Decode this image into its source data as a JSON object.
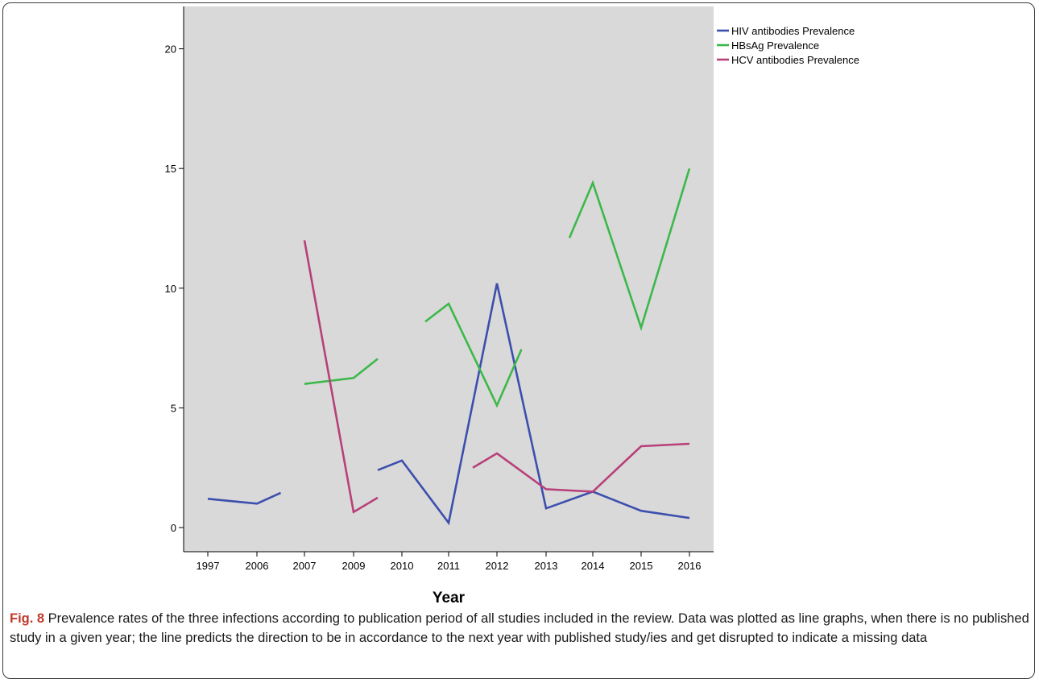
{
  "chart_data": {
    "type": "line",
    "title": "",
    "xlabel": "Year",
    "ylabel": "",
    "categories": [
      "1997",
      "2006",
      "2007",
      "2009",
      "2010",
      "2011",
      "2012",
      "2013",
      "2014",
      "2015",
      "2016"
    ],
    "ylim": [
      -1,
      21
    ],
    "yticks": [
      0,
      5,
      10,
      15,
      20
    ],
    "grid": false,
    "legend_position": "top-right-outside",
    "plot_background": "#d9d9d9",
    "series": [
      {
        "name": "HIV antibodies Prevalence",
        "color": "#3c4fad",
        "segments": [
          [
            [
              1997,
              1.2
            ],
            [
              2006,
              1.0
            ],
            [
              2007,
              1.45
            ]
          ],
          [
            [
              2009,
              2.4
            ],
            [
              2010,
              2.8
            ],
            [
              2011,
              0.2
            ],
            [
              2012,
              10.2
            ],
            [
              2013,
              0.8
            ],
            [
              2014,
              1.5
            ],
            [
              2015,
              0.7
            ],
            [
              2016,
              0.4
            ]
          ]
        ]
      },
      {
        "name": "HBsAg Prevalence",
        "color": "#3cb84a",
        "segments": [
          [
            [
              2007,
              6.0
            ],
            [
              2009,
              6.25
            ],
            [
              2010,
              7.05
            ]
          ],
          [
            [
              2010,
              8.6
            ],
            [
              2011,
              9.35
            ],
            [
              2012,
              5.1
            ],
            [
              2013,
              7.45
            ]
          ],
          [
            [
              2013,
              12.1
            ],
            [
              2014,
              14.4
            ],
            [
              2015,
              8.35
            ],
            [
              2016,
              15.0
            ]
          ]
        ]
      },
      {
        "name": "HCV antibodies Prevalence",
        "color": "#b8407a",
        "segments": [
          [
            [
              2007,
              12.0
            ],
            [
              2009,
              0.65
            ],
            [
              2010,
              1.25
            ]
          ],
          [
            [
              2011,
              2.5
            ],
            [
              2012,
              3.1
            ],
            [
              2013,
              1.6
            ],
            [
              2014,
              1.5
            ],
            [
              2015,
              3.4
            ],
            [
              2016,
              3.5
            ]
          ]
        ]
      }
    ]
  },
  "caption": {
    "label": "Fig. 8",
    "text": " Prevalence rates of the three infections according to publication period of all studies included in the review. Data was plotted as line graphs, when there is no published study in a given year; the line predicts the direction to be in accordance to the next year with published study/ies and get disrupted to indicate a missing data"
  }
}
